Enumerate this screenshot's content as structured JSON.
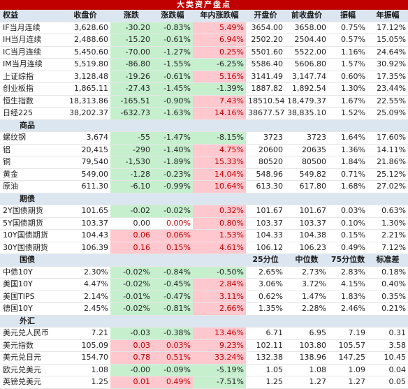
{
  "title": "大类资产盘点",
  "headers": [
    "权益",
    "收盘价",
    "涨跌",
    "涨跌幅",
    "年内涨跌幅",
    "开盘价",
    "前收盘价",
    "振幅",
    "年振幅"
  ],
  "equity_rows": [
    {
      "name": "IF当月连续",
      "close": "3,628.60",
      "chg": "-30.20",
      "pct": "-0.83%",
      "ytd": "5.49%",
      "open": "3654.00",
      "prev": "3658.00",
      "amp": "0.75%",
      "yamp": "17.12%",
      "s": [
        "g",
        "g",
        "r"
      ]
    },
    {
      "name": "IH当月连续",
      "close": "2,488.60",
      "chg": "-15.20",
      "pct": "-0.61%",
      "ytd": "6.94%",
      "open": "2502.20",
      "prev": "2504.40",
      "amp": "0.57%",
      "yamp": "15.05%",
      "s": [
        "g",
        "g",
        "r"
      ]
    },
    {
      "name": "IC当月连续",
      "close": "5,450.60",
      "chg": "-70.00",
      "pct": "-1.27%",
      "ytd": "0.25%",
      "open": "5501.60",
      "prev": "5522.00",
      "amp": "1.16%",
      "yamp": "24.64%",
      "s": [
        "g",
        "g",
        "r"
      ]
    },
    {
      "name": "IM当月连续",
      "close": "5,519.80",
      "chg": "-86.80",
      "pct": "-1.55%",
      "ytd": "-6.25%",
      "open": "5586.40",
      "prev": "5606.80",
      "amp": "1.57%",
      "yamp": "30.92%",
      "s": [
        "g",
        "g",
        "g"
      ]
    },
    {
      "name": "上证综指",
      "close": "3,128.48",
      "chg": "-19.26",
      "pct": "-0.61%",
      "ytd": "5.16%",
      "open": "3141.49",
      "prev": "3,147.74",
      "amp": "0.60%",
      "yamp": "17.35%",
      "s": [
        "g",
        "g",
        "r"
      ]
    },
    {
      "name": "创业板指",
      "close": "1,865.11",
      "chg": "-27.43",
      "pct": "-1.45%",
      "ytd": "-1.39%",
      "open": "1887.82",
      "prev": "1,892.54",
      "amp": "1.30%",
      "yamp": "23.44%",
      "s": [
        "g",
        "g",
        "g"
      ]
    },
    {
      "name": "恒生指数",
      "close": "18,313.86",
      "chg": "-165.51",
      "pct": "-0.90%",
      "ytd": "7.43%",
      "open": "18510.54",
      "prev": "18,479.37",
      "amp": "1.67%",
      "yamp": "22.55%",
      "s": [
        "g",
        "g",
        "r"
      ]
    },
    {
      "name": "日经225",
      "close": "38,202.37",
      "chg": "-632.73",
      "pct": "-1.63%",
      "ytd": "14.16%",
      "open": "38677.57",
      "prev": "38,835.10",
      "amp": "1.52%",
      "yamp": "25.09%",
      "s": [
        "g",
        "g",
        "r"
      ]
    }
  ],
  "commodity_section": "商品",
  "commodity_rows": [
    {
      "name": "螺纹钢",
      "close": "3,674",
      "chg": "-55",
      "pct": "-1.47%",
      "ytd": "-8.15%",
      "open": "3723",
      "prev": "3723",
      "amp": "1.64%",
      "yamp": "17.60%",
      "s": [
        "g",
        "g",
        "g"
      ]
    },
    {
      "name": "铝",
      "close": "20,415",
      "chg": "-290",
      "pct": "-1.40%",
      "ytd": "4.75%",
      "open": "20600",
      "prev": "20635",
      "amp": "1.36%",
      "yamp": "14.11%",
      "s": [
        "g",
        "g",
        "r"
      ]
    },
    {
      "name": "铜",
      "close": "79,540",
      "chg": "-1,530",
      "pct": "-1.89%",
      "ytd": "15.33%",
      "open": "80520",
      "prev": "80500",
      "amp": "1.84%",
      "yamp": "21.86%",
      "s": [
        "g",
        "g",
        "r"
      ]
    },
    {
      "name": "黄金",
      "close": "549.00",
      "chg": "-1.28",
      "pct": "-0.23%",
      "ytd": "14.04%",
      "open": "548.96",
      "prev": "549.82",
      "amp": "0.71%",
      "yamp": "25.12%",
      "s": [
        "g",
        "g",
        "r"
      ]
    },
    {
      "name": "原油",
      "close": "611.30",
      "chg": "-6.10",
      "pct": "-0.99%",
      "ytd": "10.64%",
      "open": "613.30",
      "prev": "617.80",
      "amp": "1.68%",
      "yamp": "27.02%",
      "s": [
        "g",
        "g",
        "r"
      ]
    }
  ],
  "futures_section": "期债",
  "futures_rows": [
    {
      "name": "2Y国债期货",
      "close": "101.65",
      "chg": "-0.02",
      "pct": "-0.02%",
      "ytd": "0.32%",
      "open": "101.67",
      "prev": "101.67",
      "amp": "0.03%",
      "yamp": "0.63%",
      "s": [
        "g",
        "g",
        "r"
      ]
    },
    {
      "name": "5Y国债期货",
      "close": "103.37",
      "chg": "0.00",
      "pct": "0.00%",
      "ytd": "0.80%",
      "open": "103.37",
      "prev": "103.37",
      "amp": "0.10%",
      "yamp": "1.30%",
      "s": [
        "",
        "t",
        "r"
      ]
    },
    {
      "name": "10Y国债期货",
      "close": "104.43",
      "chg": "0.06",
      "pct": "0.06%",
      "ytd": "1.53%",
      "open": "104.33",
      "prev": "104.38",
      "amp": "0.15%",
      "yamp": "2.21%",
      "s": [
        "r",
        "r",
        "r"
      ]
    },
    {
      "name": "30Y国债期货",
      "close": "106.39",
      "chg": "0.16",
      "pct": "0.15%",
      "ytd": "4.61%",
      "open": "106.12",
      "prev": "106.23",
      "amp": "0.49%",
      "yamp": "7.12%",
      "s": [
        "r",
        "r",
        "r"
      ]
    }
  ],
  "bond_section": {
    "name": "国债",
    "h5": "25分位",
    "h6": "中位数",
    "h7": "75分位数",
    "h8": "标准差"
  },
  "bond_rows": [
    {
      "name": "中债10Y",
      "close": "2.30%",
      "chg": "-0.02%",
      "pct": "-0.84%",
      "ytd": "-0.50%",
      "open": "2.65%",
      "prev": "2.73%",
      "amp": "2.83%",
      "yamp": "0.18%",
      "s": [
        "g",
        "g",
        "g"
      ]
    },
    {
      "name": "美国10Y",
      "close": "4.47%",
      "chg": "-0.02%",
      "pct": "-0.45%",
      "ytd": "2.84%",
      "open": "3.06%",
      "prev": "3.72%",
      "amp": "4.15%",
      "yamp": "0.40%",
      "s": [
        "g",
        "g",
        "r"
      ]
    },
    {
      "name": "美国TIPS",
      "close": "2.14%",
      "chg": "-0.01%",
      "pct": "-0.47%",
      "ytd": "3.11%",
      "open": "0.62%",
      "prev": "1.47%",
      "amp": "1.83%",
      "yamp": "0.35%",
      "s": [
        "g",
        "g",
        "r"
      ]
    },
    {
      "name": "德国10Y",
      "close": "2.45%",
      "chg": "-0.02%",
      "pct": "-0.81%",
      "ytd": "2.66%",
      "open": "1.35%",
      "prev": "2.28%",
      "amp": "2.46%",
      "yamp": "0.21%",
      "s": [
        "g",
        "g",
        "r"
      ]
    }
  ],
  "fx_section": "外汇",
  "fx_rows": [
    {
      "name": "美元兑人民币",
      "close": "7.21",
      "chg": "-0.03",
      "pct": "-0.38%",
      "ytd": "13.46%",
      "open": "6.71",
      "prev": "6.95",
      "amp": "7.19",
      "yamp": "0.31",
      "s": [
        "g",
        "g",
        "r"
      ]
    },
    {
      "name": "美元指数",
      "close": "105.09",
      "chg": "0.03",
      "pct": "0.03%",
      "ytd": "9.23%",
      "open": "102.11",
      "prev": "103.80",
      "amp": "105.57",
      "yamp": "3.58",
      "s": [
        "r",
        "r",
        "r"
      ]
    },
    {
      "name": "美元兑日元",
      "close": "154.70",
      "chg": "0.78",
      "pct": "0.51%",
      "ytd": "33.24%",
      "open": "132.38",
      "prev": "138.96",
      "amp": "147.25",
      "yamp": "10.45",
      "s": [
        "r",
        "r",
        "r"
      ]
    },
    {
      "name": "欧元兑美元",
      "close": "1.08",
      "chg": "-0.00",
      "pct": "-0.09%",
      "ytd": "-5.19%",
      "open": "1.05",
      "prev": "1.08",
      "amp": "1.09",
      "yamp": "0.04",
      "s": [
        "g",
        "g",
        "g"
      ]
    },
    {
      "name": "英镑兑美元",
      "close": "1.25",
      "chg": "0.01",
      "pct": "0.49%",
      "ytd": "-7.51%",
      "open": "1.25",
      "prev": "1.27",
      "amp": "1.27",
      "yamp": "0.05",
      "s": [
        "r",
        "r",
        "g"
      ]
    }
  ],
  "colors": {
    "header_bg": "#dce6f1",
    "title_bg": "#c00000",
    "up_bg": "#ffc7ce",
    "down_bg": "#c6efce"
  }
}
